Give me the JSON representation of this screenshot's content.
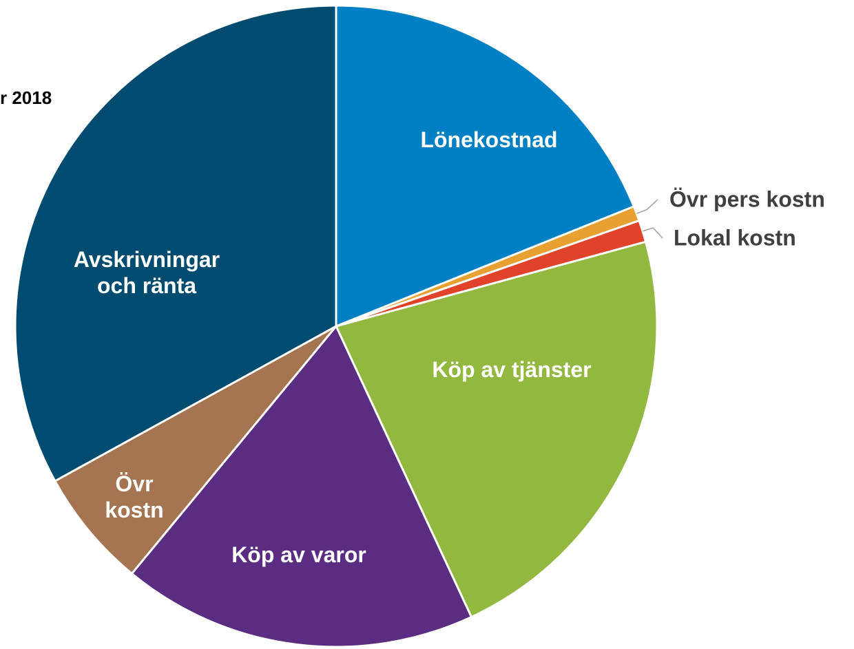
{
  "chart_data": {
    "type": "pie",
    "title": "r 2018",
    "categories": [
      "Lönekostnad",
      "Övr pers kostn",
      "Lokal kostn",
      "Köp av tjänster",
      "Köp av varor",
      "Övr kostn",
      "Avskrivningar och ränta"
    ],
    "values": [
      18.9,
      0.75,
      1.1,
      22.3,
      17.9,
      6.0,
      33.0
    ],
    "colors": [
      "#0080c4",
      "#e8a030",
      "#e0432a",
      "#92b840",
      "#5a2d82",
      "#a47550",
      "#004c70"
    ]
  }
}
